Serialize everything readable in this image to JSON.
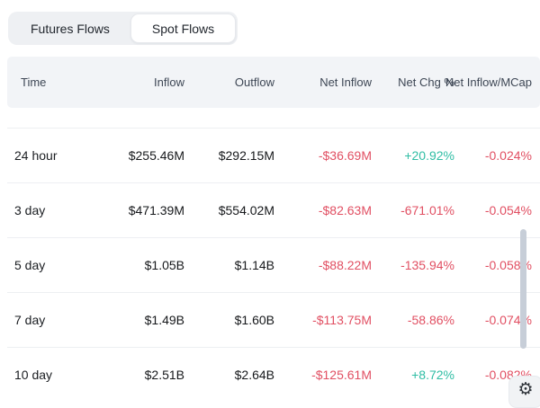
{
  "tabs": {
    "items": [
      {
        "label": "Futures Flows",
        "active": false
      },
      {
        "label": "Spot Flows",
        "active": true
      }
    ]
  },
  "table": {
    "headers": {
      "time": "Time",
      "inflow": "Inflow",
      "outflow": "Outflow",
      "net_inflow": "Net Inflow",
      "net_chg": "Net Chg %",
      "net_inflow_mcap": "Net Inflow/MCap"
    },
    "rows": [
      {
        "time": "24 hour",
        "inflow": "$255.46M",
        "outflow": "$292.15M",
        "net_inflow": "-$36.69M",
        "net_chg": "+20.92%",
        "net_inflow_mcap": "-0.024%"
      },
      {
        "time": "3 day",
        "inflow": "$471.39M",
        "outflow": "$554.02M",
        "net_inflow": "-$82.63M",
        "net_chg": "-671.01%",
        "net_inflow_mcap": "-0.054%"
      },
      {
        "time": "5 day",
        "inflow": "$1.05B",
        "outflow": "$1.14B",
        "net_inflow": "-$88.22M",
        "net_chg": "-135.94%",
        "net_inflow_mcap": "-0.058%"
      },
      {
        "time": "7 day",
        "inflow": "$1.49B",
        "outflow": "$1.60B",
        "net_inflow": "-$113.75M",
        "net_chg": "-58.86%",
        "net_inflow_mcap": "-0.074%"
      },
      {
        "time": "10 day",
        "inflow": "$2.51B",
        "outflow": "$2.64B",
        "net_inflow": "-$125.61M",
        "net_chg": "+8.72%",
        "net_inflow_mcap": "-0.082%"
      }
    ]
  },
  "icons": {
    "settings": "⚙"
  },
  "colors": {
    "positive": "#2fbda4",
    "negative": "#e14f62"
  }
}
